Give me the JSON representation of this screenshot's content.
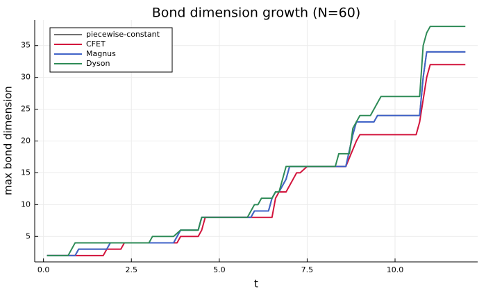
{
  "chart_data": {
    "type": "line",
    "title": "Bond dimension growth (N=60)",
    "x_label": "t",
    "y_label": "max bond dimension",
    "xlim": [
      -0.25,
      12.35
    ],
    "ylim": [
      1,
      39
    ],
    "xticks": [
      {
        "value": 0,
        "label": "0.0"
      },
      2.5,
      {
        "value": 5,
        "label": "5.0"
      },
      7.5,
      {
        "value": 10,
        "label": "10.0"
      }
    ],
    "yticks": [
      5,
      10,
      15,
      20,
      25,
      30,
      35
    ],
    "grid": true,
    "legend": "top-left",
    "series": [
      {
        "name": "piecewise-constant",
        "color": "#707070",
        "x": [
          0.1,
          0.9,
          1.0,
          1.8,
          1.9,
          3.7,
          3.9,
          4.4,
          4.5,
          5.9,
          6.0,
          6.4,
          6.5,
          6.6,
          6.7,
          6.9,
          7.0,
          8.6,
          8.8,
          8.9,
          9.4,
          9.5,
          10.7,
          10.8,
          10.9,
          12.0
        ],
        "values": [
          2,
          2,
          3,
          3,
          4,
          4,
          6,
          6,
          8,
          8,
          9,
          9,
          11,
          12,
          12,
          14,
          16,
          16,
          21,
          23,
          23,
          24,
          24,
          30,
          34,
          34
        ]
      },
      {
        "name": "CFET",
        "color": "#d2143c",
        "x": [
          0.1,
          1.7,
          1.8,
          2.2,
          2.3,
          3.8,
          3.9,
          4.4,
          4.5,
          4.6,
          6.5,
          6.6,
          6.7,
          6.9,
          7.2,
          7.3,
          7.5,
          8.6,
          8.9,
          9.0,
          10.6,
          10.7,
          10.9,
          11.0,
          12.0
        ],
        "values": [
          2,
          2,
          3,
          3,
          4,
          4,
          5,
          5,
          6,
          8,
          8,
          11,
          12,
          12,
          15,
          15,
          16,
          16,
          20,
          21,
          21,
          23,
          30,
          32,
          32
        ]
      },
      {
        "name": "Magnus",
        "color": "#4063c8",
        "x": [
          0.1,
          0.9,
          1.0,
          1.8,
          1.9,
          3.7,
          3.9,
          4.4,
          4.5,
          5.9,
          6.0,
          6.4,
          6.5,
          6.6,
          6.7,
          6.9,
          7.0,
          8.6,
          8.8,
          8.9,
          9.4,
          9.5,
          10.7,
          10.8,
          10.9,
          12.0
        ],
        "values": [
          2,
          2,
          3,
          3,
          4,
          4,
          6,
          6,
          8,
          8,
          9,
          9,
          11,
          12,
          12,
          14,
          16,
          16,
          21,
          23,
          23,
          24,
          24,
          30,
          34,
          34
        ]
      },
      {
        "name": "Dyson",
        "color": "#2e8b57",
        "x": [
          0.1,
          0.7,
          0.9,
          3.0,
          3.1,
          3.7,
          3.9,
          4.4,
          4.5,
          5.8,
          6.0,
          6.1,
          6.2,
          6.5,
          6.6,
          6.7,
          6.8,
          6.9,
          8.3,
          8.4,
          8.7,
          8.8,
          9.0,
          9.3,
          9.5,
          9.6,
          10.7,
          10.8,
          10.9,
          11.0,
          12.0
        ],
        "values": [
          2,
          2,
          4,
          4,
          5,
          5,
          6,
          6,
          8,
          8,
          10,
          10,
          11,
          11,
          12,
          12,
          14,
          16,
          16,
          18,
          18,
          22,
          24,
          24,
          26,
          27,
          27,
          35,
          37,
          38,
          38
        ]
      }
    ]
  }
}
